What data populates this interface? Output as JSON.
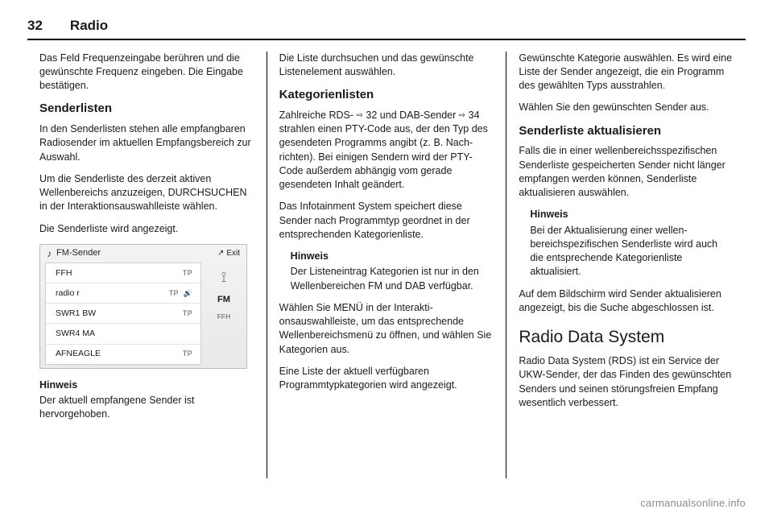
{
  "header": {
    "page_no": "32",
    "title": "Radio"
  },
  "col1": {
    "p1": "Das Feld Frequenzeingabe berühren und die gewünschte Frequenz einge­ben. Die Eingabe bestätigen.",
    "h_senderlisten": "Senderlisten",
    "p2": "In den Senderlisten stehen alle empfangbaren Radiosender im aktu­ellen Empfangsbereich zur Auswahl.",
    "p3": "Um die Senderliste des derzeit akti­ven Wellenbereichs anzuzeigen, DURCHSUCHEN in der Interaktions­auswahlleiste wählen.",
    "p4": "Die Senderliste wird angezeigt.",
    "fig": {
      "top_left_icon": "♪",
      "top_left_label": "FM-Sender",
      "top_right_icon": "↗",
      "top_right_label": "Exit",
      "rows": [
        {
          "name": "FFH",
          "tp": "TP",
          "spk": ""
        },
        {
          "name": "radio r",
          "tp": "TP",
          "spk": "🔊"
        },
        {
          "name": "SWR1 BW",
          "tp": "TP",
          "spk": ""
        },
        {
          "name": "SWR4 MA",
          "tp": "",
          "spk": ""
        },
        {
          "name": "AFNEAGLE",
          "tp": "TP",
          "spk": ""
        }
      ],
      "side": {
        "tower": "⟟",
        "fm": "FM",
        "ffh": "FFH"
      }
    },
    "hinweis_label": "Hinweis",
    "hinweis_text": "Der aktuell empfangene Sender ist hervorgehoben."
  },
  "col2": {
    "p1": "Die Liste durchsuchen und das gewünschte Listenelement auswäh­len.",
    "h_kat": "Kategorienlisten",
    "p2a": "Zahlreiche RDS- ",
    "p2_ref1_icon": "⇨",
    "p2_ref1_num": "32",
    "p2b": " und DAB-Sender ",
    "p2_ref2_icon": "⇨",
    "p2_ref2_num": "34",
    "p2c": " strahlen einen PTY-Code aus, der den Typ des gesende­ten Programms angibt (z. B. Nach­richten). Bei einigen Sendern wird der PTY-Code außerdem abhängig vom gerade gesendeten Inhalt geändert.",
    "p3": "Das Infotainment System speichert diese Sender nach Programmtyp geordnet in der entsprechenden Kategorienliste.",
    "hinweis_label": "Hinweis",
    "hinweis_text": "Der Listeneintrag Kategorien ist nur in den Wellenbereichen FM und DAB verfügbar.",
    "p4": "Wählen Sie MENÜ in der Interakti­onsauswahlleiste, um das entspre­chende Wellenbereichsmenü zu öffnen, und wählen Sie Kategorien aus.",
    "p5": "Eine Liste der aktuell verfügbaren Programmtypkategorien wird ange­zeigt."
  },
  "col3": {
    "p1": "Gewünschte Kategorie auswählen. Es wird eine Liste der Sender ange­zeigt, die ein Programm des gewähl­ten Typs ausstrahlen.",
    "p2": "Wählen Sie den gewünschten Sender aus.",
    "h_akt": "Senderliste aktualisieren",
    "p3": "Falls die in einer wellenbereichsspezi­fischen Senderliste gespeicherten Sender nicht länger empfangen werden können, Senderliste aktualisieren auswählen.",
    "hinweis_label": "Hinweis",
    "hinweis_text": "Bei der Aktualisierung einer wellen­bereichspezifischen Senderliste wird auch die entsprechende Kate­gorienliste aktualisiert.",
    "p4": "Auf dem Bildschirm wird Sender aktualisieren angezeigt, bis die Suche abgeschlossen ist.",
    "h_rds": "Radio Data System",
    "p5": "Radio Data System (RDS) ist ein Service der UKW-Sender, der das Finden des gewünschten Senders und seinen störungsfreien Empfang wesentlich verbessert."
  },
  "footer_url": "carmanualsonline.info"
}
